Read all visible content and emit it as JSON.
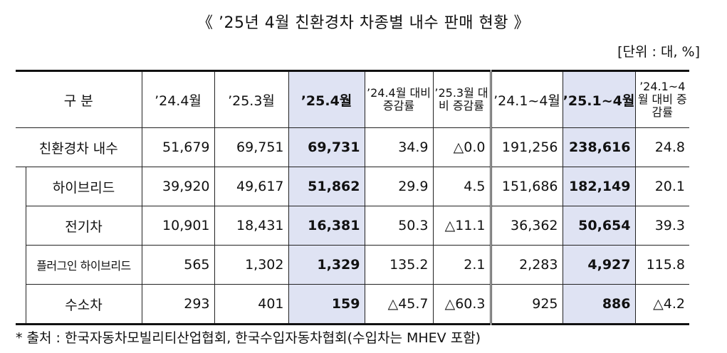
{
  "title": "《 ’25년 4월 친환경차 차종별 내수 판매 현황 》",
  "unit": "[단위 : 대, %]",
  "headers": {
    "category": "구  분",
    "c1": "’24.4월",
    "c2": "’25.3월",
    "c3": "’25.4월",
    "c4": "’24.4월 대비 증감률",
    "c5": "’25.3월 대비 증감률",
    "c6": "’24.1~4월",
    "c7": "’25.1~4월",
    "c8": "’24.1~4월 대비 증감률"
  },
  "rows": [
    {
      "label": "친환경차 내수",
      "v1": "51,679",
      "v2": "69,751",
      "v3": "69,731",
      "v4": "34.9",
      "v5": "△0.0",
      "v6": "191,256",
      "v7": "238,616",
      "v8": "24.8"
    },
    {
      "label": "하이브리드",
      "v1": "39,920",
      "v2": "49,617",
      "v3": "51,862",
      "v4": "29.9",
      "v5": "4.5",
      "v6": "151,686",
      "v7": "182,149",
      "v8": "20.1"
    },
    {
      "label": "전기차",
      "v1": "10,901",
      "v2": "18,431",
      "v3": "16,381",
      "v4": "50.3",
      "v5": "△11.1",
      "v6": "36,362",
      "v7": "50,654",
      "v8": "39.3"
    },
    {
      "label": "플러그인 하이브리드",
      "v1": "565",
      "v2": "1,302",
      "v3": "1,329",
      "v4": "135.2",
      "v5": "2.1",
      "v6": "2,283",
      "v7": "4,927",
      "v8": "115.8"
    },
    {
      "label": "수소차",
      "v1": "293",
      "v2": "401",
      "v3": "159",
      "v4": "△45.7",
      "v5": "△60.3",
      "v6": "925",
      "v7": "886",
      "v8": "△4.2"
    }
  ],
  "note": "* 출처 : 한국자동차모빌리티산업협회, 한국수입자동차협회(수입차는 MHEV 포함)"
}
